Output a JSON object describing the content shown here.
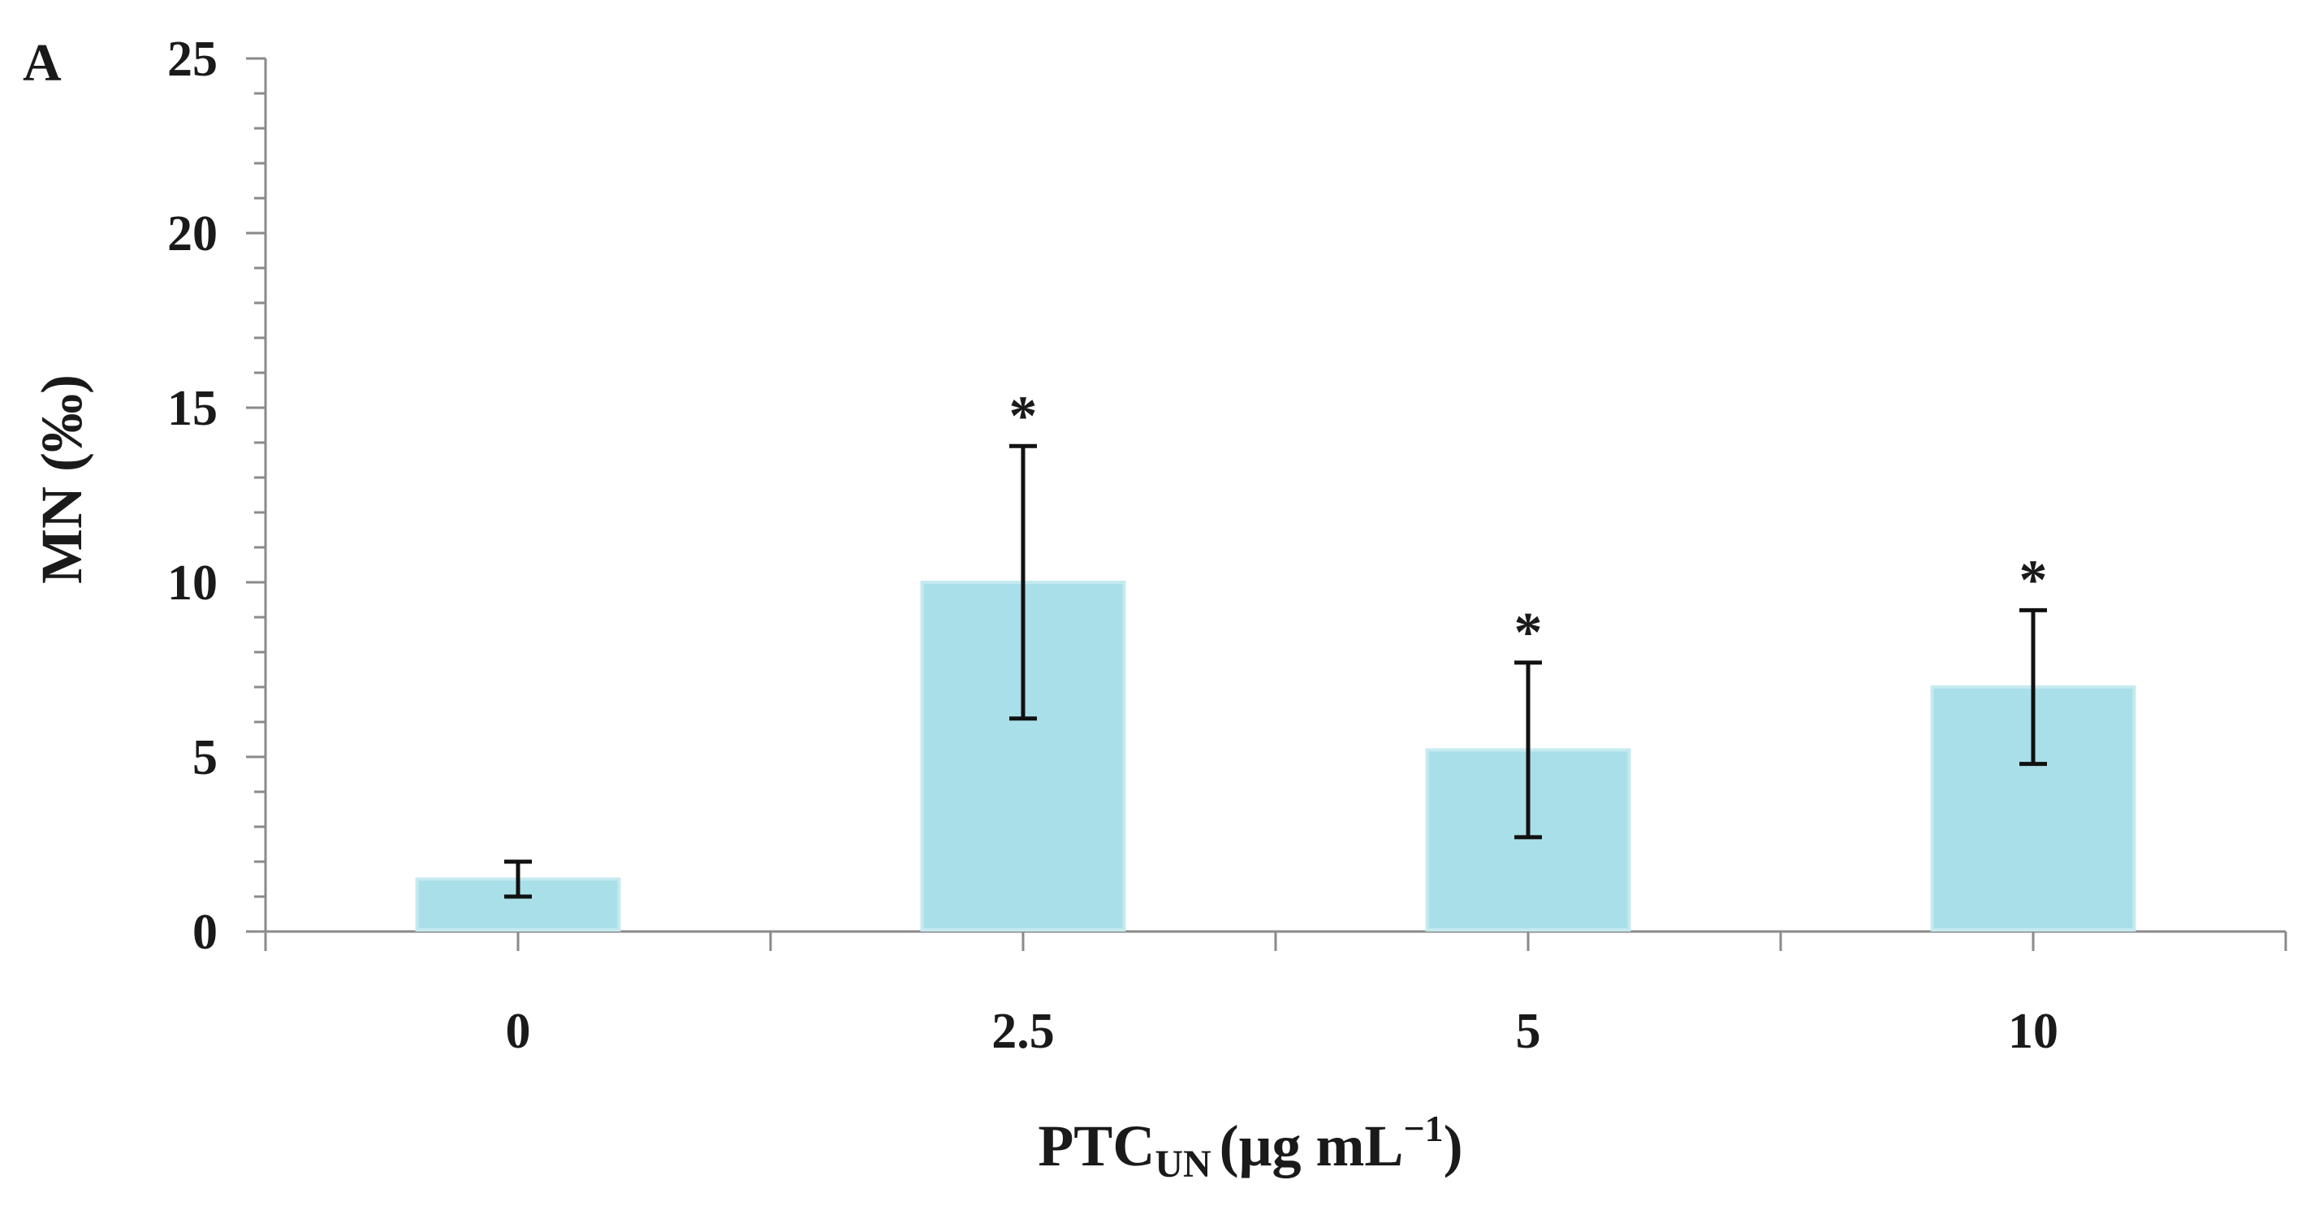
{
  "chart_data": {
    "type": "bar",
    "panel_label": "A",
    "title": "",
    "categories": [
      "0",
      "2.5",
      "5",
      "10"
    ],
    "values": [
      1.5,
      10.0,
      5.2,
      7.0
    ],
    "errors": [
      0.5,
      3.9,
      2.5,
      2.2
    ],
    "significance": [
      "",
      "*",
      "*",
      "*"
    ],
    "xlabel": {
      "main": "PTC",
      "subscript": "UN",
      "unit": "(μg mL",
      "superscript": "−1",
      "close": ")"
    },
    "ylabel": "MN (‰)",
    "ylim": [
      0,
      25
    ],
    "yticks": [
      "0",
      "5",
      "10",
      "15",
      "20",
      "25"
    ],
    "y_major_step": 5,
    "y_minor_step": 1,
    "bar_color": "#a9dfe8",
    "bar_edge_color": "#c4eaf0",
    "axis_color": "#8a8a8a",
    "error_color": "#111111",
    "grid": false,
    "legend": "none"
  }
}
